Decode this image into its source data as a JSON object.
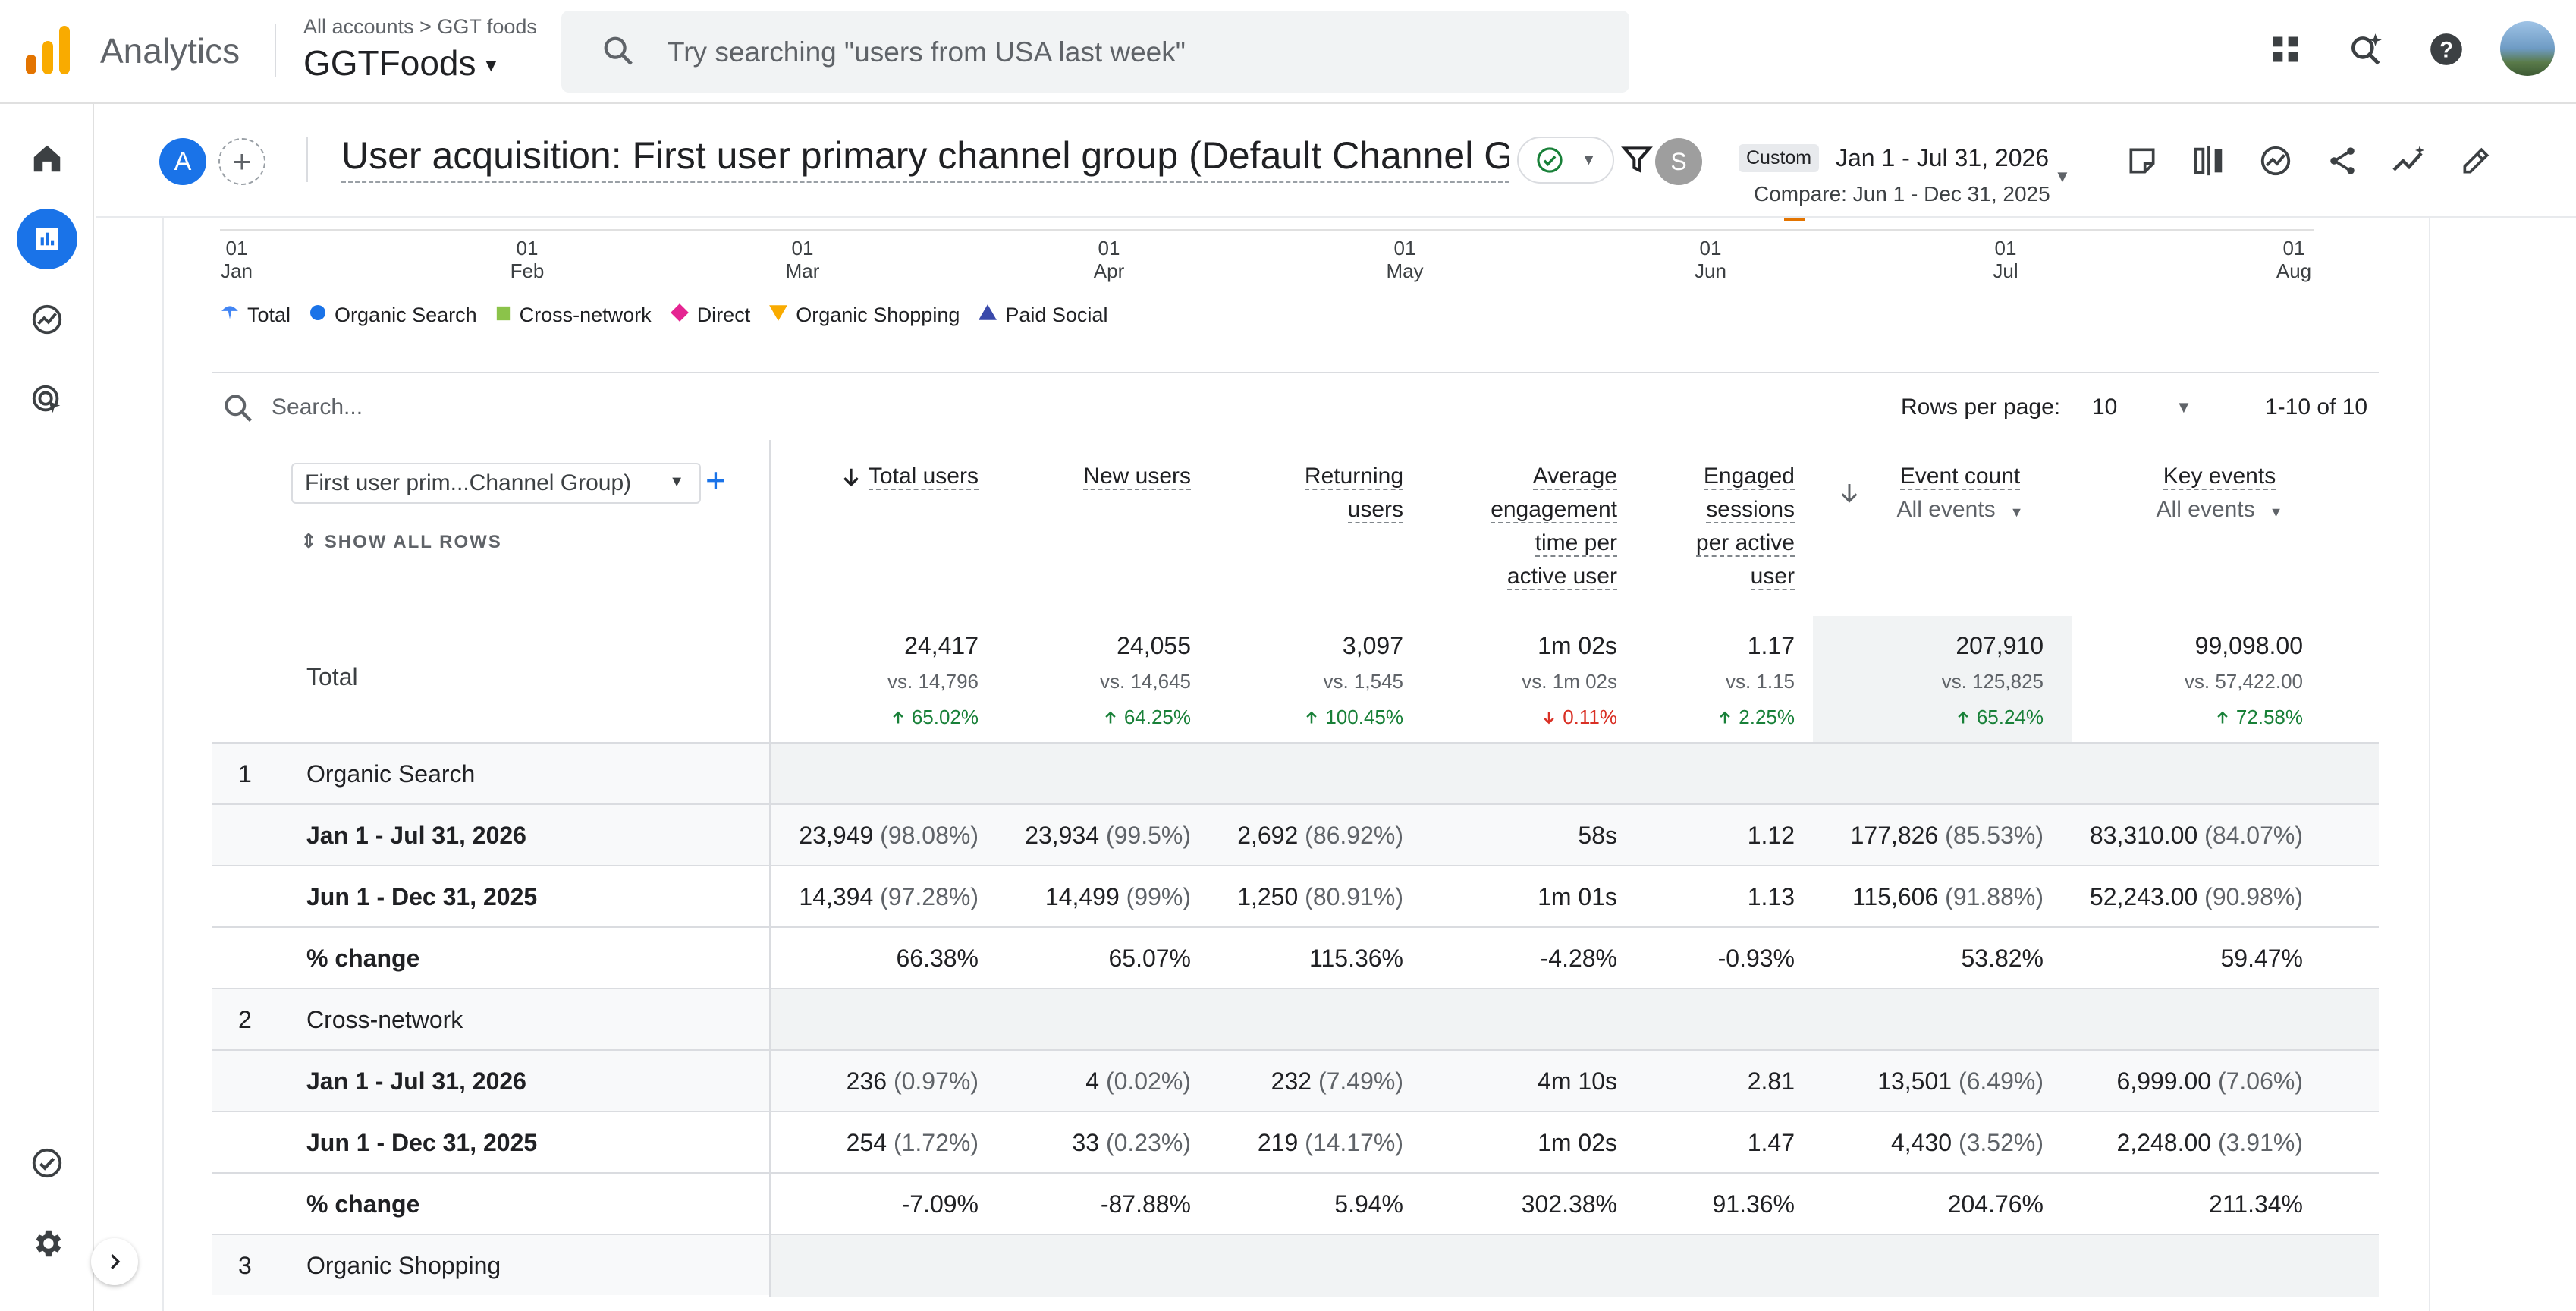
{
  "topbar": {
    "app_name": "Analytics",
    "breadcrumb": "All accounts > GGT foods",
    "property": "GGTFoods",
    "search_placeholder": "Try searching \"users from USA last week\"",
    "icons": [
      "apps-grid-icon",
      "search-insights-icon",
      "help-icon",
      "account-avatar"
    ]
  },
  "leftnav": {
    "items": [
      "home-icon",
      "reports-icon",
      "explore-icon",
      "advertising-icon",
      "admin-checks-icon",
      "settings-gear-icon"
    ],
    "active": "reports-icon"
  },
  "report": {
    "segment_chip": "A",
    "title": "User acquisition: First user primary channel group (Default Channel G...",
    "user_chip": "S",
    "date_preset": "Custom",
    "date_range": "Jan 1 - Jul 31, 2026",
    "compare_range": "Compare: Jun 1 - Dec 31, 2025"
  },
  "chart_axis": {
    "ticks": [
      {
        "day": "01",
        "month": "Jan"
      },
      {
        "day": "01",
        "month": "Feb"
      },
      {
        "day": "01",
        "month": "Mar"
      },
      {
        "day": "01",
        "month": "Apr"
      },
      {
        "day": "01",
        "month": "May"
      },
      {
        "day": "01",
        "month": "Jun"
      },
      {
        "day": "01",
        "month": "Jul"
      },
      {
        "day": "01",
        "month": "Aug"
      }
    ]
  },
  "legend": {
    "items": [
      {
        "label": "Total",
        "color": "#4285f4",
        "shape": "pin"
      },
      {
        "label": "Organic Search",
        "color": "#1a73e8",
        "shape": "circle"
      },
      {
        "label": "Cross-network",
        "color": "#8bc34a",
        "shape": "square"
      },
      {
        "label": "Direct",
        "color": "#e52592",
        "shape": "diamond"
      },
      {
        "label": "Organic Shopping",
        "color": "#f9ab00",
        "shape": "triangle-down"
      },
      {
        "label": "Paid Social",
        "color": "#3949ab",
        "shape": "triangle-up"
      }
    ]
  },
  "table": {
    "search_placeholder": "Search...",
    "rows_per_page_label": "Rows per page:",
    "rows_per_page": "10",
    "pager": "1-10 of 10",
    "dimension": "First user prim...Channel Group)",
    "show_all_rows": "SHOW ALL ROWS",
    "total_label": "Total",
    "columns": [
      {
        "lines": [
          "Total users"
        ],
        "sorted": true,
        "total": "24,417",
        "vs": "vs. 14,796",
        "change": "65.02%",
        "dir": "up"
      },
      {
        "lines": [
          "New users"
        ],
        "total": "24,055",
        "vs": "vs. 14,645",
        "change": "64.25%",
        "dir": "up"
      },
      {
        "lines": [
          "Returning",
          "users"
        ],
        "total": "3,097",
        "vs": "vs. 1,545",
        "change": "100.45%",
        "dir": "up"
      },
      {
        "lines": [
          "Average",
          "engagement",
          "time per",
          "active user"
        ],
        "total": "1m 02s",
        "vs": "vs. 1m 02s",
        "change": "0.11%",
        "dir": "down"
      },
      {
        "lines": [
          "Engaged",
          "sessions",
          "per active",
          "user"
        ],
        "total": "1.17",
        "vs": "vs. 1.15",
        "change": "2.25%",
        "dir": "up"
      },
      {
        "lines": [
          "Event count"
        ],
        "sub": "All events",
        "total": "207,910",
        "vs": "vs. 125,825",
        "change": "65.24%",
        "dir": "up"
      },
      {
        "lines": [
          "Key events"
        ],
        "sub": "All events",
        "total": "99,098.00",
        "vs": "vs. 57,422.00",
        "change": "72.58%",
        "dir": "up"
      }
    ],
    "groups": [
      {
        "num": "1",
        "name": "Organic Search",
        "rows": [
          {
            "label": "Jan 1 - Jul 31, 2026",
            "cells": [
              [
                "23,949",
                "(98.08%)"
              ],
              [
                "23,934",
                "(99.5%)"
              ],
              [
                "2,692",
                "(86.92%)"
              ],
              [
                "58s",
                ""
              ],
              [
                "1.12",
                ""
              ],
              [
                "177,826",
                "(85.53%)"
              ],
              [
                "83,310.00",
                "(84.07%)"
              ]
            ]
          },
          {
            "label": "Jun 1 - Dec 31, 2025",
            "cells": [
              [
                "14,394",
                "(97.28%)"
              ],
              [
                "14,499",
                "(99%)"
              ],
              [
                "1,250",
                "(80.91%)"
              ],
              [
                "1m 01s",
                ""
              ],
              [
                "1.13",
                ""
              ],
              [
                "115,606",
                "(91.88%)"
              ],
              [
                "52,243.00",
                "(90.98%)"
              ]
            ]
          },
          {
            "label": "% change",
            "cells": [
              [
                "66.38%",
                ""
              ],
              [
                "65.07%",
                ""
              ],
              [
                "115.36%",
                ""
              ],
              [
                "-4.28%",
                ""
              ],
              [
                "-0.93%",
                ""
              ],
              [
                "53.82%",
                ""
              ],
              [
                "59.47%",
                ""
              ]
            ]
          }
        ]
      },
      {
        "num": "2",
        "name": "Cross-network",
        "rows": [
          {
            "label": "Jan 1 - Jul 31, 2026",
            "cells": [
              [
                "236",
                "(0.97%)"
              ],
              [
                "4",
                "(0.02%)"
              ],
              [
                "232",
                "(7.49%)"
              ],
              [
                "4m 10s",
                ""
              ],
              [
                "2.81",
                ""
              ],
              [
                "13,501",
                "(6.49%)"
              ],
              [
                "6,999.00",
                "(7.06%)"
              ]
            ]
          },
          {
            "label": "Jun 1 - Dec 31, 2025",
            "cells": [
              [
                "254",
                "(1.72%)"
              ],
              [
                "33",
                "(0.23%)"
              ],
              [
                "219",
                "(14.17%)"
              ],
              [
                "1m 02s",
                ""
              ],
              [
                "1.47",
                ""
              ],
              [
                "4,430",
                "(3.52%)"
              ],
              [
                "2,248.00",
                "(3.91%)"
              ]
            ]
          },
          {
            "label": "% change",
            "cells": [
              [
                "-7.09%",
                ""
              ],
              [
                "-87.88%",
                ""
              ],
              [
                "5.94%",
                ""
              ],
              [
                "302.38%",
                ""
              ],
              [
                "91.36%",
                ""
              ],
              [
                "204.76%",
                ""
              ],
              [
                "211.34%",
                ""
              ]
            ]
          }
        ]
      },
      {
        "num": "3",
        "name": "Organic Shopping",
        "rows": []
      }
    ]
  }
}
